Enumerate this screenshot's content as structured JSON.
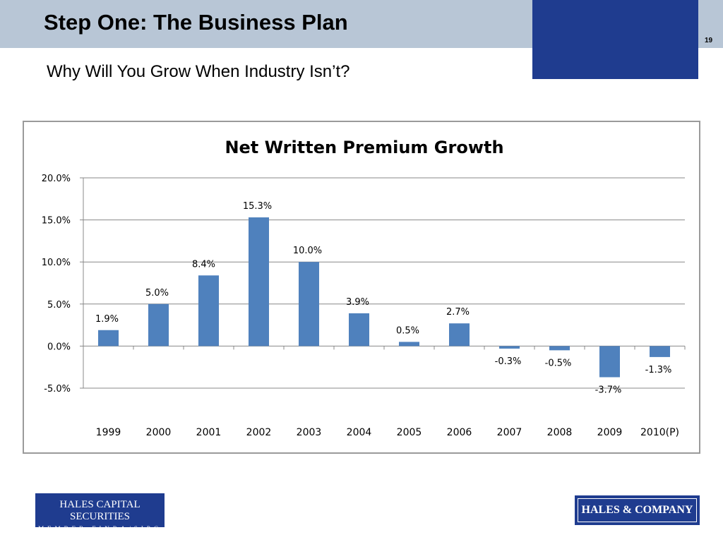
{
  "slide": {
    "title": "Step One:  The Business Plan",
    "page_number": "19",
    "subtitle": "Why Will You Grow When Industry Isn’t?"
  },
  "logos": {
    "left_line1": "HALES CAPITAL SECURITIES",
    "left_line2": "MEMBER FINRA/SIPC",
    "right": "HALES & COMPANY"
  },
  "colors": {
    "header_band": "#b8c6d6",
    "corner_block": "#1f3c8f",
    "bar": "#4f81bd",
    "grid": "#888888"
  },
  "chart_data": {
    "type": "bar",
    "title": "Net Written Premium Growth",
    "xlabel": "",
    "ylabel": "",
    "categories": [
      "1999",
      "2000",
      "2001",
      "2002",
      "2003",
      "2004",
      "2005",
      "2006",
      "2007",
      "2008",
      "2009",
      "2010(P)"
    ],
    "values": [
      1.9,
      5.0,
      8.4,
      15.3,
      10.0,
      3.9,
      0.5,
      2.7,
      -0.3,
      -0.5,
      -3.7,
      -1.3
    ],
    "value_labels": [
      "1.9%",
      "5.0%",
      "8.4%",
      "15.3%",
      "10.0%",
      "3.9%",
      "0.5%",
      "2.7%",
      "-0.3%",
      "-0.5%",
      "-3.7%",
      "-1.3%"
    ],
    "ylim": [
      -5.0,
      20.0
    ],
    "yticks": [
      20.0,
      15.0,
      10.0,
      5.0,
      0.0,
      -5.0
    ],
    "ytick_labels": [
      "20.0%",
      "15.0%",
      "10.0%",
      "5.0%",
      "0.0%",
      "-5.0%"
    ],
    "grid": true,
    "legend": "none"
  }
}
